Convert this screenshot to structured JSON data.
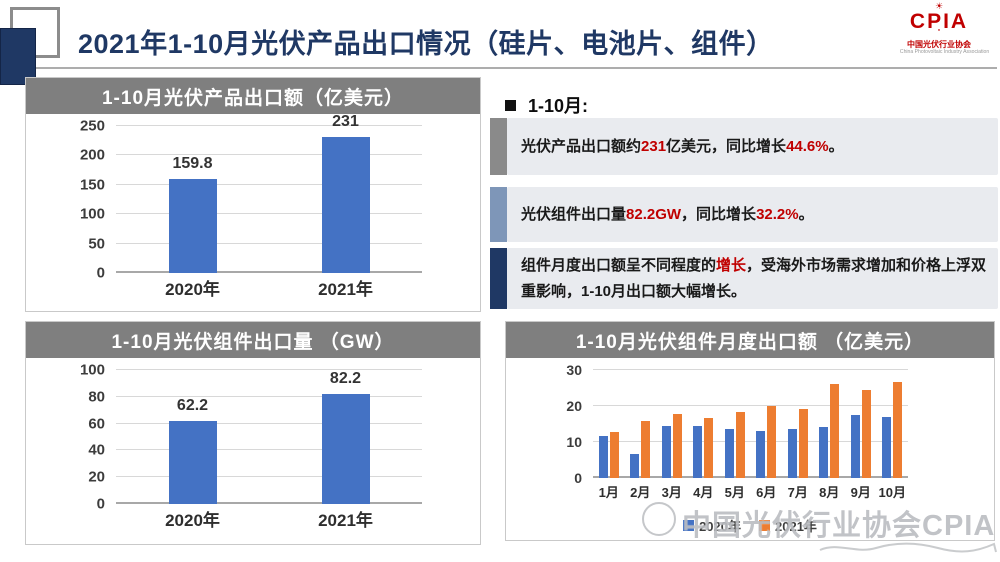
{
  "header": {
    "title": "2021年1-10月光伏产品出口情况（硅片、电池片、组件）",
    "logo": {
      "name": "CPIA",
      "burst": "☀",
      "subtext": "中国光伏行业协会",
      "subtext_en": "China Photovoltaic Industry Association"
    }
  },
  "callouts": {
    "heading": "1-10月:",
    "items": [
      {
        "accent": "#8A8A8A",
        "segments": [
          {
            "text": "光伏产品出口额约",
            "red": false
          },
          {
            "text": "231",
            "red": true
          },
          {
            "text": "亿美元，同比增长",
            "red": false
          },
          {
            "text": "44.6%",
            "red": true
          },
          {
            "text": "。",
            "red": false
          }
        ]
      },
      {
        "accent": "#7E96B8",
        "segments": [
          {
            "text": "光伏组件出口量",
            "red": false
          },
          {
            "text": "82.2GW",
            "red": true
          },
          {
            "text": "，同比增长",
            "red": false
          },
          {
            "text": "32.2%",
            "red": true
          },
          {
            "text": "。",
            "red": false
          }
        ]
      },
      {
        "accent": "#1F3864",
        "segments": [
          {
            "text": "组件月度出口额呈不同程度的",
            "red": false
          },
          {
            "text": "增长",
            "red": true
          },
          {
            "text": "，受海外市场需求增加和价格上浮双重影响，1-10月出口额大幅增长。",
            "red": false
          }
        ]
      }
    ]
  },
  "chart_data": [
    {
      "type": "bar",
      "title": "1-10月光伏产品出口额（亿美元）",
      "categories": [
        "2020年",
        "2021年"
      ],
      "values": [
        159.8,
        231
      ],
      "data_labels": [
        "159.8",
        "231"
      ],
      "xlabel": "",
      "ylabel": "亿美元",
      "ylim": [
        0,
        250
      ],
      "ytick_step": 50,
      "grid": true,
      "bar_color": "#4472C4"
    },
    {
      "type": "bar",
      "title": "1-10月光伏组件出口量 （GW）",
      "categories": [
        "2020年",
        "2021年"
      ],
      "values": [
        62.2,
        82.2
      ],
      "data_labels": [
        "62.2",
        "82.2"
      ],
      "xlabel": "",
      "ylabel": "GW",
      "ylim": [
        0,
        100
      ],
      "ytick_step": 20,
      "grid": true,
      "bar_color": "#4472C4"
    },
    {
      "type": "bar",
      "title": "1-10月光伏组件月度出口额 （亿美元）",
      "categories": [
        "1月",
        "2月",
        "3月",
        "4月",
        "5月",
        "6月",
        "7月",
        "8月",
        "9月",
        "10月"
      ],
      "series": [
        {
          "name": "2020年",
          "color": "#4472C4",
          "values": [
            11.7,
            6.7,
            14.4,
            14.5,
            13.7,
            13.0,
            13.7,
            14.1,
            17.4,
            16.9
          ]
        },
        {
          "name": "2021年",
          "color": "#ED7D31",
          "values": [
            12.8,
            15.9,
            17.7,
            16.7,
            18.4,
            19.9,
            19.3,
            26.0,
            24.4,
            26.7
          ]
        }
      ],
      "xlabel": "",
      "ylabel": "亿美元",
      "ylim": [
        0,
        30
      ],
      "ytick_step": 10,
      "grid": true,
      "legend_position": "bottom"
    }
  ],
  "watermark": {
    "text": "中国光伏行业协会CPIA"
  },
  "colors": {
    "accent_navy": "#1F3864",
    "bar_blue": "#4472C4",
    "bar_orange": "#ED7D31",
    "highlight_red": "#C00000",
    "panel_title_gray": "#7F7F7F",
    "callout_bg": "#E9EBEF"
  }
}
